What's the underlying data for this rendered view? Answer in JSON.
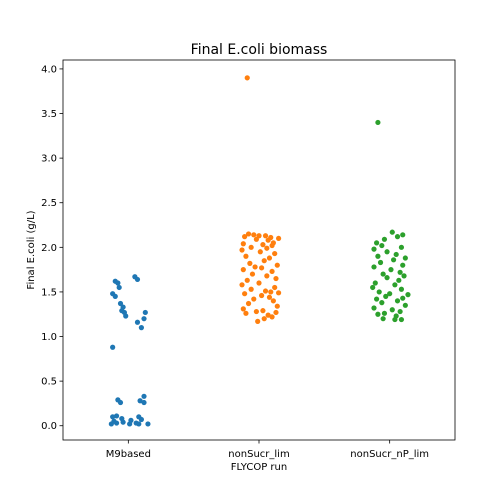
{
  "chart_data": {
    "type": "scatter",
    "subtype": "strip",
    "title": "Final E.coli biomass",
    "xlabel": "FLYCOP run",
    "ylabel": "Final E.coli (g/L)",
    "categories": [
      "M9based",
      "nonSucr_lim",
      "nonSucr_nP_lim"
    ],
    "ylim": [
      -0.16,
      4.1
    ],
    "yticks": [
      0.0,
      0.5,
      1.0,
      1.5,
      2.0,
      2.5,
      3.0,
      3.5,
      4.0
    ],
    "ytick_labels": [
      "0.0",
      "0.5",
      "1.0",
      "1.5",
      "2.0",
      "2.5",
      "3.0",
      "3.5",
      "4.0"
    ],
    "grid": false,
    "series": [
      {
        "category": "M9based",
        "color": "#1f77b4",
        "values": [
          1.67,
          1.64,
          1.62,
          1.6,
          1.55,
          1.48,
          1.45,
          1.37,
          1.33,
          1.29,
          1.27,
          1.27,
          1.23,
          1.2,
          1.16,
          1.1,
          0.88,
          0.33,
          0.29,
          0.28,
          0.26,
          0.26,
          0.11,
          0.1,
          0.1,
          0.08,
          0.07,
          0.06,
          0.05,
          0.04,
          0.03,
          0.03,
          0.02,
          0.02,
          0.02,
          0.02
        ],
        "jitter": [
          0.05,
          0.07,
          -0.1,
          -0.08,
          -0.07,
          -0.12,
          -0.1,
          -0.06,
          -0.04,
          -0.05,
          -0.03,
          0.13,
          -0.02,
          0.12,
          0.07,
          0.1,
          -0.12,
          0.12,
          -0.08,
          0.09,
          -0.06,
          0.12,
          -0.09,
          0.08,
          -0.12,
          -0.05,
          0.1,
          0.02,
          -0.11,
          -0.04,
          -0.09,
          0.06,
          -0.13,
          0.01,
          0.08,
          0.15
        ]
      },
      {
        "category": "nonSucr_lim",
        "color": "#ff7f0e",
        "values": [
          3.9,
          2.15,
          2.14,
          2.13,
          2.13,
          2.12,
          2.11,
          2.1,
          2.09,
          2.08,
          2.05,
          2.04,
          2.03,
          2.02,
          2.0,
          1.99,
          1.97,
          1.95,
          1.93,
          1.9,
          1.88,
          1.85,
          1.82,
          1.8,
          1.78,
          1.77,
          1.75,
          1.73,
          1.7,
          1.68,
          1.65,
          1.63,
          1.6,
          1.58,
          1.55,
          1.53,
          1.51,
          1.5,
          1.49,
          1.48,
          1.46,
          1.44,
          1.42,
          1.4,
          1.37,
          1.34,
          1.31,
          1.29,
          1.28,
          1.27,
          1.26,
          1.24,
          1.22,
          1.2,
          1.17
        ],
        "jitter": [
          -0.09,
          -0.08,
          -0.04,
          0.0,
          0.05,
          -0.11,
          0.09,
          0.15,
          -0.02,
          0.07,
          0.11,
          -0.12,
          0.03,
          0.1,
          -0.06,
          0.06,
          -0.13,
          0.01,
          0.12,
          -0.1,
          0.08,
          0.04,
          -0.07,
          0.14,
          -0.03,
          0.02,
          -0.12,
          0.1,
          -0.05,
          0.06,
          0.13,
          -0.09,
          0.0,
          -0.13,
          0.12,
          -0.06,
          0.05,
          0.09,
          0.15,
          -0.11,
          0.02,
          0.08,
          -0.04,
          0.11,
          -0.08,
          0.14,
          -0.12,
          0.03,
          -0.02,
          0.13,
          -0.1,
          0.07,
          0.1,
          0.04,
          -0.01
        ]
      },
      {
        "category": "nonSucr_nP_lim",
        "color": "#2ca02c",
        "values": [
          3.4,
          2.17,
          2.14,
          2.12,
          2.09,
          2.05,
          2.02,
          2.0,
          1.98,
          1.95,
          1.92,
          1.9,
          1.88,
          1.86,
          1.83,
          1.8,
          1.78,
          1.75,
          1.72,
          1.7,
          1.68,
          1.66,
          1.63,
          1.6,
          1.58,
          1.55,
          1.53,
          1.5,
          1.48,
          1.47,
          1.45,
          1.43,
          1.42,
          1.4,
          1.38,
          1.35,
          1.32,
          1.3,
          1.28,
          1.26,
          1.25,
          1.23,
          1.2,
          1.19,
          1.19
        ],
        "jitter": [
          -0.09,
          0.02,
          0.1,
          0.06,
          -0.04,
          -0.1,
          -0.06,
          0.09,
          -0.12,
          -0.02,
          0.05,
          -0.09,
          0.12,
          0.03,
          -0.07,
          0.1,
          -0.12,
          0.01,
          0.08,
          -0.05,
          0.11,
          -0.02,
          0.07,
          -0.11,
          0.04,
          -0.13,
          0.09,
          -0.08,
          0.0,
          0.14,
          -0.03,
          0.1,
          -0.1,
          0.06,
          -0.06,
          0.12,
          -0.12,
          0.02,
          0.08,
          -0.04,
          -0.09,
          0.05,
          -0.05,
          0.09,
          0.04
        ]
      }
    ]
  }
}
